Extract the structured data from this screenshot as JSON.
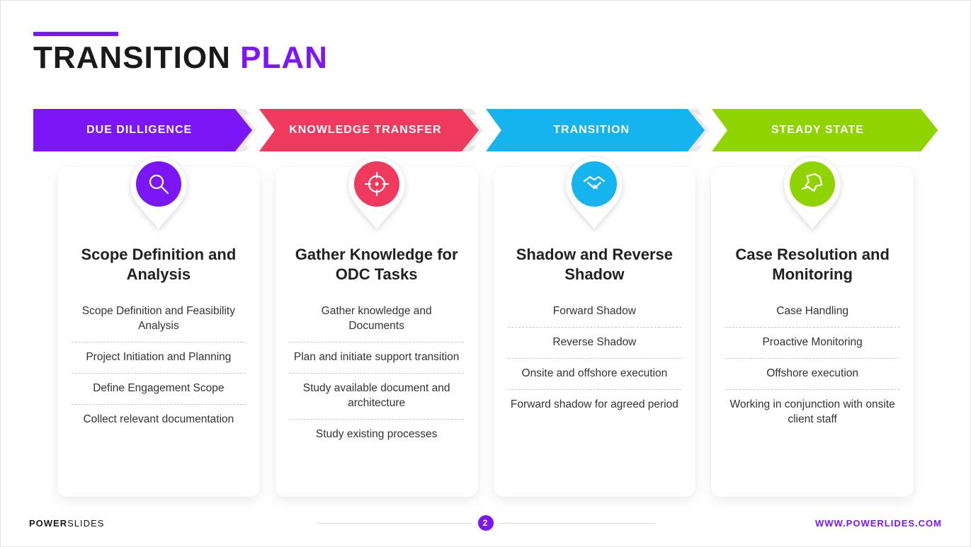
{
  "title": {
    "part1": "TRANSITION ",
    "part2": "PLAN"
  },
  "accent_color": "#7b16f7",
  "phases": [
    {
      "arrow_label": "DUE DILLIGENCE",
      "color": "#7b16f7",
      "icon": "search-icon",
      "card_title": "Scope Definition and Analysis",
      "items": [
        "Scope Definition and Feasibility Analysis",
        "Project Initiation and Planning",
        "Define Engagement Scope",
        "Collect relevant documentation"
      ]
    },
    {
      "arrow_label": "KNOWLEDGE TRANSFER",
      "color": "#ef3a5d",
      "icon": "crosshair-icon",
      "card_title": "Gather Knowledge for ODC Tasks",
      "items": [
        "Gather knowledge and Documents",
        "Plan and initiate support transition",
        "Study available document and architecture",
        "Study existing processes"
      ]
    },
    {
      "arrow_label": "TRANSITION",
      "color": "#16b4ef",
      "icon": "handshake-icon",
      "card_title": "Shadow and Reverse Shadow",
      "items": [
        "Forward Shadow",
        "Reverse Shadow",
        "Onsite and offshore execution",
        "Forward shadow for agreed period"
      ]
    },
    {
      "arrow_label": "STEADY STATE",
      "color": "#8fd400",
      "icon": "pin-icon",
      "card_title": "Case Resolution and Monitoring",
      "items": [
        "Case Handling",
        "Proactive Monitoring",
        "Offshore execution",
        "Working in conjunction with onsite client staff"
      ]
    }
  ],
  "footer": {
    "brand_bold": "POWER",
    "brand_thin": "SLIDES",
    "page": "2",
    "url": "WWW.POWERLIDES.COM"
  },
  "style": {
    "background": "#ffffff",
    "card_background": "#ffffff",
    "text_color": "#222222",
    "subtext_color": "#333333",
    "divider_color": "#c9c9c9",
    "title_fontsize": 44,
    "card_title_fontsize": 22,
    "item_fontsize": 15.5,
    "chevron_separator_color": "#e9e9e9"
  }
}
